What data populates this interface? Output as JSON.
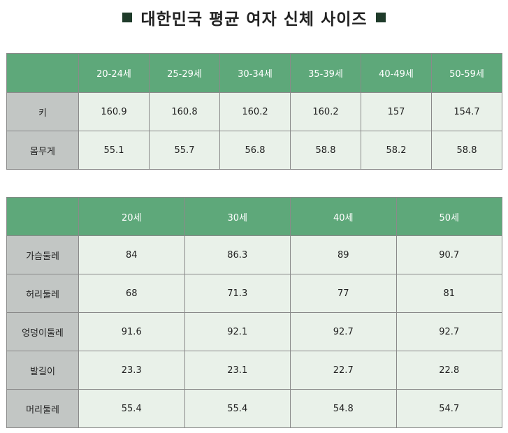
{
  "title": "대한민국 평균 여자 신체 사이즈",
  "table1": {
    "headers": [
      "20-24세",
      "25-29세",
      "30-34세",
      "35-39세",
      "40-49세",
      "50-59세"
    ],
    "rows": [
      {
        "label": "키",
        "values": [
          "160.9",
          "160.8",
          "160.2",
          "160.2",
          "157",
          "154.7"
        ]
      },
      {
        "label": "몸무게",
        "values": [
          "55.1",
          "55.7",
          "56.8",
          "58.8",
          "58.2",
          "58.8"
        ]
      }
    ]
  },
  "table2": {
    "headers": [
      "20세",
      "30세",
      "40세",
      "50세"
    ],
    "rows": [
      {
        "label": "가슴둘레",
        "values": [
          "84",
          "86.3",
          "89",
          "90.7"
        ]
      },
      {
        "label": "허리둘레",
        "values": [
          "68",
          "71.3",
          "77",
          "81"
        ]
      },
      {
        "label": "엉덩이둘레",
        "values": [
          "91.6",
          "92.1",
          "92.7",
          "92.7"
        ]
      },
      {
        "label": "발길이",
        "values": [
          "23.3",
          "23.1",
          "22.7",
          "22.8"
        ]
      },
      {
        "label": "머리둘레",
        "values": [
          "55.4",
          "55.4",
          "54.8",
          "54.7"
        ]
      }
    ]
  }
}
